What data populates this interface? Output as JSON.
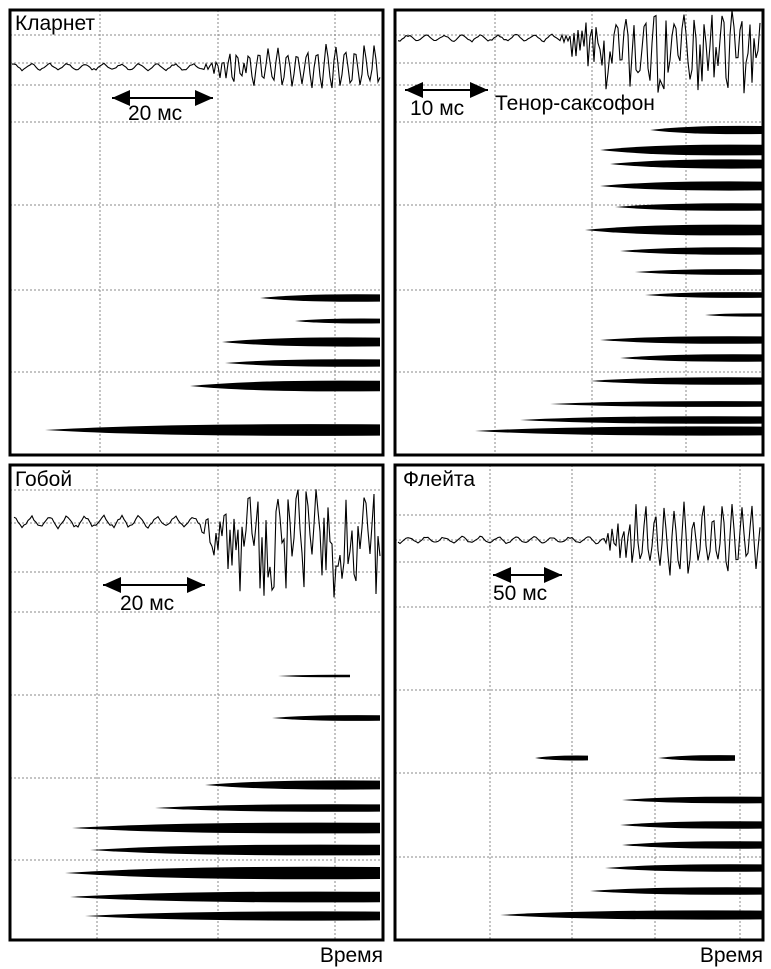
{
  "panels": [
    {
      "title": "Кларнет",
      "scale": "20 мс"
    },
    {
      "title": "Тенор-саксофон",
      "scale": "10 мс"
    },
    {
      "title": "Гобой",
      "scale": "20 мс"
    },
    {
      "title": "Флейта",
      "scale": "50 мс"
    }
  ],
  "x_axis_labels": [
    "Время",
    "Время"
  ]
}
